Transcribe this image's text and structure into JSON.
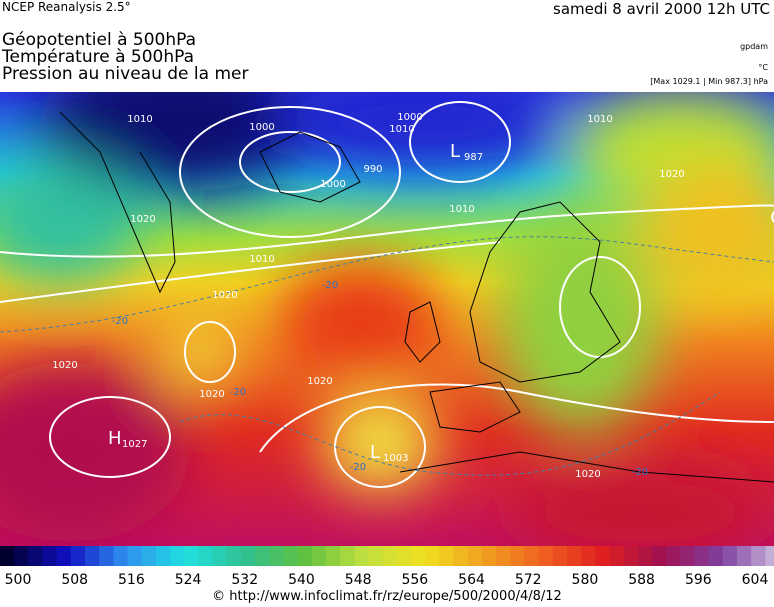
{
  "header": {
    "source": "NCEP Reanalysis 2.5°",
    "date": "samedi 8 avril 2000 12h UTC"
  },
  "titles": [
    "Géopotentiel à 500hPa",
    "Température à 500hPa",
    "Pression au niveau de la mer"
  ],
  "units": {
    "geopotential": "gpdam",
    "temperature": "°C",
    "pressure": "[Max 1029.1 | Min 987.3] hPa"
  },
  "map": {
    "centers": [
      {
        "letter": "L",
        "value": "987"
      },
      {
        "letter": "H",
        "value": "1027"
      },
      {
        "letter": "L",
        "value": "1003"
      }
    ],
    "contour_labels": [
      "1010",
      "1000",
      "1000",
      "990",
      "1010",
      "1020",
      "1010",
      "1000",
      "1010",
      "1020",
      "1020",
      "1020",
      "1020",
      "1020",
      "1010",
      "1020",
      "-20",
      "-20",
      "-20",
      "-20",
      "-20"
    ]
  },
  "colorbar": {
    "ticks": [
      500,
      508,
      516,
      524,
      532,
      540,
      548,
      556,
      564,
      572,
      580,
      588,
      596,
      604
    ]
  },
  "footer": "© http://www.infoclimat.fr/rz/europe/500/2000/4/8/12"
}
